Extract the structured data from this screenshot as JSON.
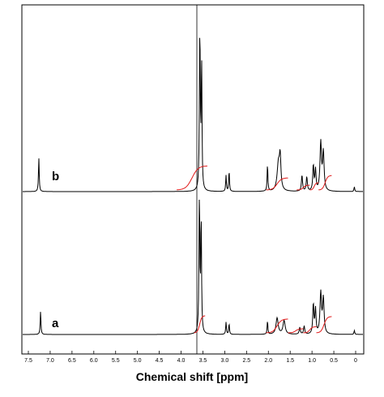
{
  "chart_data": {
    "type": "line",
    "title": "",
    "xlabel": "Chemical shift [ppm]",
    "ylabel": "",
    "xlim": [
      7.5,
      -0.3
    ],
    "x_reversed": true,
    "grid": false,
    "legend": "none",
    "x_ticks": [
      "7.5",
      "7.0",
      "6.5",
      "6.0",
      "5.5",
      "5.0",
      "4.5",
      "4.0",
      "3.5",
      "3.0",
      "2.5",
      "2.0",
      "1.5",
      "1.0",
      "0.5",
      "0"
    ],
    "x_tick_values": [
      7.5,
      7.0,
      6.5,
      6.0,
      5.5,
      5.0,
      4.5,
      4.0,
      3.5,
      3.0,
      2.5,
      2.0,
      1.5,
      1.0,
      0.5,
      0.0
    ],
    "vertical_marker_ppm": 3.57,
    "series": [
      {
        "label": "b",
        "peaks": [
          {
            "ppm": 7.26,
            "height": 0.21,
            "width": 0.01
          },
          {
            "ppm": 3.57,
            "height": 1.0,
            "width": 0.012
          },
          {
            "ppm": 3.53,
            "height": 0.8,
            "width": 0.01
          },
          {
            "ppm": 2.97,
            "height": 0.1,
            "width": 0.01
          },
          {
            "ppm": 2.9,
            "height": 0.13,
            "width": 0.01
          },
          {
            "ppm": 2.02,
            "height": 0.17,
            "width": 0.01
          },
          {
            "ppm": 1.77,
            "height": 0.17,
            "width": 0.035
          },
          {
            "ppm": 1.73,
            "height": 0.19,
            "width": 0.02
          },
          {
            "ppm": 1.23,
            "height": 0.1,
            "width": 0.015
          },
          {
            "ppm": 1.12,
            "height": 0.09,
            "width": 0.015
          },
          {
            "ppm": 0.97,
            "height": 0.16,
            "width": 0.015
          },
          {
            "ppm": 0.92,
            "height": 0.13,
            "width": 0.015
          },
          {
            "ppm": 0.8,
            "height": 0.3,
            "width": 0.02
          },
          {
            "ppm": 0.74,
            "height": 0.24,
            "width": 0.02
          },
          {
            "ppm": 0.03,
            "height": 0.03,
            "width": 0.01
          }
        ],
        "integrals": [
          {
            "from": 4.1,
            "to": 3.4,
            "rise": 0.5
          },
          {
            "from": 2.05,
            "to": 1.55,
            "rise": 0.25
          },
          {
            "from": 1.35,
            "to": 1.05,
            "rise": 0.1
          },
          {
            "from": 1.05,
            "to": 0.85,
            "rise": 0.15
          },
          {
            "from": 0.85,
            "to": 0.55,
            "rise": 0.3
          }
        ]
      },
      {
        "label": "a",
        "peaks": [
          {
            "ppm": 7.22,
            "height": 0.17,
            "width": 0.01
          },
          {
            "ppm": 3.58,
            "height": 1.0,
            "width": 0.012
          },
          {
            "ppm": 3.54,
            "height": 0.85,
            "width": 0.01
          },
          {
            "ppm": 2.97,
            "height": 0.09,
            "width": 0.01
          },
          {
            "ppm": 2.9,
            "height": 0.08,
            "width": 0.01
          },
          {
            "ppm": 2.02,
            "height": 0.1,
            "width": 0.01
          },
          {
            "ppm": 1.8,
            "height": 0.12,
            "width": 0.03
          },
          {
            "ppm": 1.64,
            "height": 0.1,
            "width": 0.03
          },
          {
            "ppm": 1.28,
            "height": 0.05,
            "width": 0.015
          },
          {
            "ppm": 1.18,
            "height": 0.06,
            "width": 0.015
          },
          {
            "ppm": 0.97,
            "height": 0.22,
            "width": 0.015
          },
          {
            "ppm": 0.92,
            "height": 0.18,
            "width": 0.015
          },
          {
            "ppm": 0.8,
            "height": 0.3,
            "width": 0.02
          },
          {
            "ppm": 0.74,
            "height": 0.26,
            "width": 0.02
          },
          {
            "ppm": 0.03,
            "height": 0.03,
            "width": 0.01
          }
        ],
        "integrals": [
          {
            "from": 3.7,
            "to": 3.45,
            "rise": 0.42
          },
          {
            "from": 2.05,
            "to": 1.55,
            "rise": 0.34
          },
          {
            "from": 1.55,
            "to": 1.2,
            "rise": 0.1
          },
          {
            "from": 1.2,
            "to": 0.9,
            "rise": 0.15
          },
          {
            "from": 0.9,
            "to": 0.55,
            "rise": 0.4
          }
        ]
      }
    ]
  }
}
